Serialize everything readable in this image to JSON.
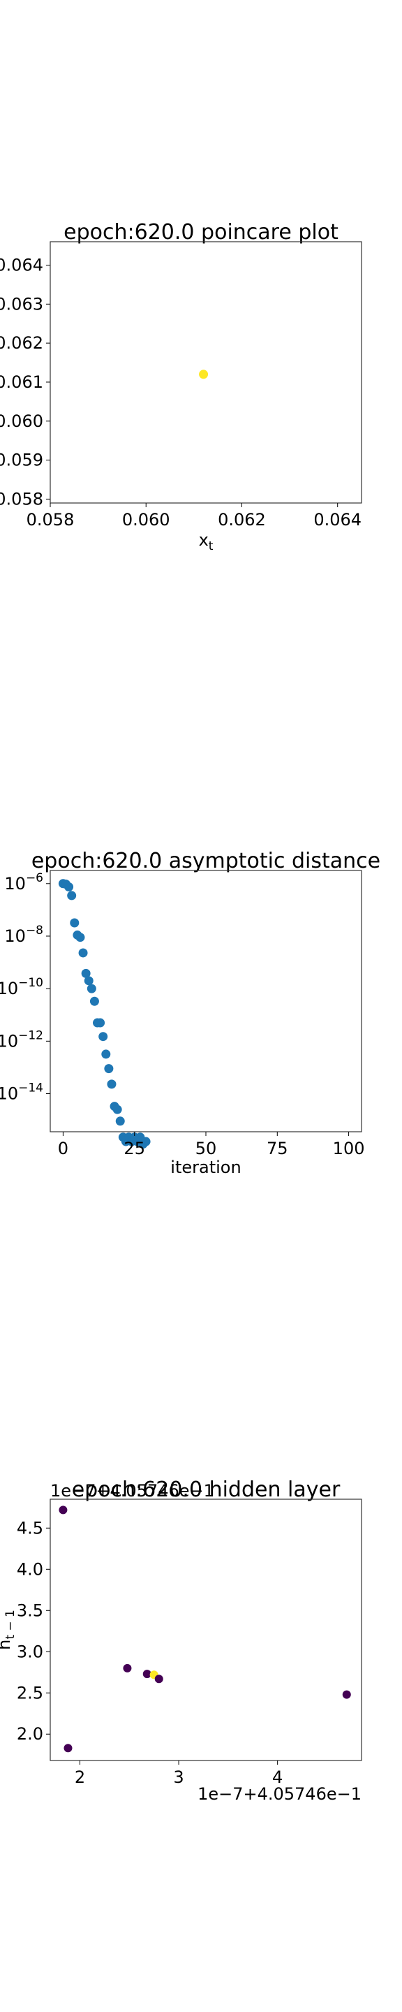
{
  "chart_data": [
    {
      "type": "scatter",
      "title": "epoch:620.0 poincare plot",
      "xlabel_text": "x",
      "xlabel_sub": "t",
      "ylabel": "",
      "xlim": [
        0.058,
        0.0645
      ],
      "ylim": [
        0.0579,
        0.0646
      ],
      "x_ticks": [
        0.058,
        0.06,
        0.062,
        0.064
      ],
      "x_tick_labels": [
        "0.058",
        "0.060",
        "0.062",
        "0.064"
      ],
      "y_ticks": [
        0.058,
        0.059,
        0.06,
        0.061,
        0.062,
        0.063,
        0.064
      ],
      "y_tick_labels": [
        "0.058",
        "0.059",
        "0.060",
        "0.061",
        "0.062",
        "0.063",
        "0.064"
      ],
      "points": [
        {
          "x": 0.0612,
          "y": 0.0612,
          "color": "#fde725"
        }
      ]
    },
    {
      "type": "scatter",
      "title": "epoch:620.0 asymptotic distance",
      "xlabel": "iteration",
      "ylabel": "",
      "yscale": "log",
      "xlim": [
        -4.5,
        104.5
      ],
      "ylim_log10": [
        -15.45,
        -5.5
      ],
      "x_ticks": [
        0,
        25,
        50,
        75,
        100
      ],
      "x_tick_labels": [
        "0",
        "25",
        "50",
        "75",
        "100"
      ],
      "y_ticks_log10": [
        -6,
        -8,
        -10,
        -12,
        -14
      ],
      "y_tick_labels": [
        "10^-6",
        "10^-8",
        "10^-10",
        "10^-12",
        "10^-14"
      ],
      "color": "#1f77b4",
      "points": [
        {
          "x": 0,
          "y": 1e-06
        },
        {
          "x": 1,
          "y": 9.5e-07
        },
        {
          "x": 2,
          "y": 7.5e-07
        },
        {
          "x": 3,
          "y": 3.5e-07
        },
        {
          "x": 4,
          "y": 3.2e-08
        },
        {
          "x": 5,
          "y": 1.1e-08
        },
        {
          "x": 6,
          "y": 9e-09
        },
        {
          "x": 7,
          "y": 2.3e-09
        },
        {
          "x": 8,
          "y": 3.8e-10
        },
        {
          "x": 9,
          "y": 2e-10
        },
        {
          "x": 10,
          "y": 1e-10
        },
        {
          "x": 11,
          "y": 3.3e-11
        },
        {
          "x": 12,
          "y": 5e-12
        },
        {
          "x": 13,
          "y": 5e-12
        },
        {
          "x": 14,
          "y": 1.5e-12
        },
        {
          "x": 15,
          "y": 3.2e-13
        },
        {
          "x": 16,
          "y": 9e-14
        },
        {
          "x": 17,
          "y": 2.3e-14
        },
        {
          "x": 18,
          "y": 3.3e-15
        },
        {
          "x": 19,
          "y": 2.5e-15
        },
        {
          "x": 20,
          "y": 9e-16
        },
        {
          "x": 21,
          "y": 2.2e-16
        },
        {
          "x": 22,
          "y": 1.5e-16
        },
        {
          "x": 23,
          "y": 2.2e-16
        },
        {
          "x": 24,
          "y": 1.5e-16
        },
        {
          "x": 25,
          "y": 2.2e-16
        },
        {
          "x": 26,
          "y": 1.5e-16
        },
        {
          "x": 27,
          "y": 2.2e-16
        },
        {
          "x": 28,
          "y": 1.2e-16
        },
        {
          "x": 29,
          "y": 1.5e-16
        }
      ]
    },
    {
      "type": "scatter",
      "title": "epoch:620.0 hidden layer",
      "ylabel_text": "h",
      "ylabel_sub": "t − 1",
      "xlabel": "",
      "x_offset_text": "1e−7+4.05746e−1",
      "y_offset_text": "1e−7+4.05746e−1",
      "xlim": [
        1.7,
        4.85
      ],
      "ylim": [
        1.68,
        4.85
      ],
      "x_ticks": [
        2,
        3,
        4
      ],
      "x_tick_labels": [
        "2",
        "3",
        "4"
      ],
      "y_ticks": [
        2.0,
        2.5,
        3.0,
        3.5,
        4.0,
        4.5
      ],
      "y_tick_labels": [
        "2.0",
        "2.5",
        "3.0",
        "3.5",
        "4.0",
        "4.5"
      ],
      "points": [
        {
          "x": 1.83,
          "y": 4.72,
          "color": "#440154"
        },
        {
          "x": 1.88,
          "y": 1.83,
          "color": "#440154"
        },
        {
          "x": 2.48,
          "y": 2.8,
          "color": "#440154"
        },
        {
          "x": 2.68,
          "y": 2.73,
          "color": "#440154"
        },
        {
          "x": 2.75,
          "y": 2.72,
          "color": "#fde725"
        },
        {
          "x": 2.8,
          "y": 2.67,
          "color": "#440154"
        },
        {
          "x": 4.7,
          "y": 2.48,
          "color": "#440154"
        }
      ]
    }
  ]
}
